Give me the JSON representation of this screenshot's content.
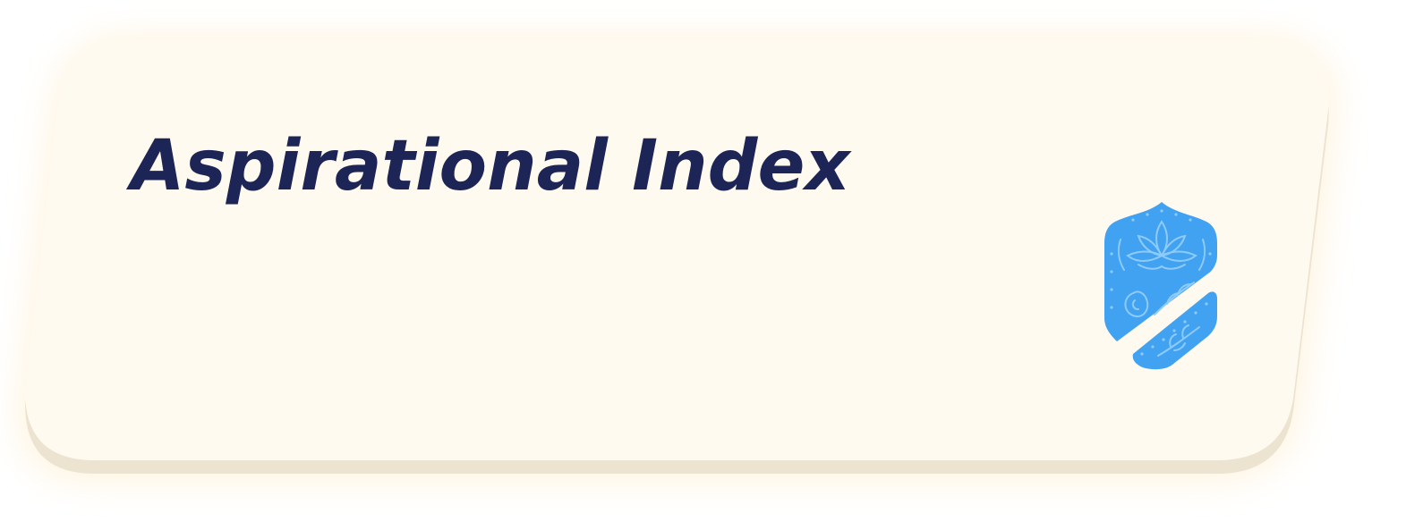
{
  "card": {
    "title": "Aspirational Index",
    "emblem_icon": "paisley-lotus-shield-icon",
    "colors": {
      "card_face": "#fffaef",
      "card_edge": "#ece4d0",
      "glow": "#fff0d4",
      "title": "#1d2456",
      "emblem": "#41a2f2",
      "emblem_pattern": "#8fcbfa"
    }
  }
}
